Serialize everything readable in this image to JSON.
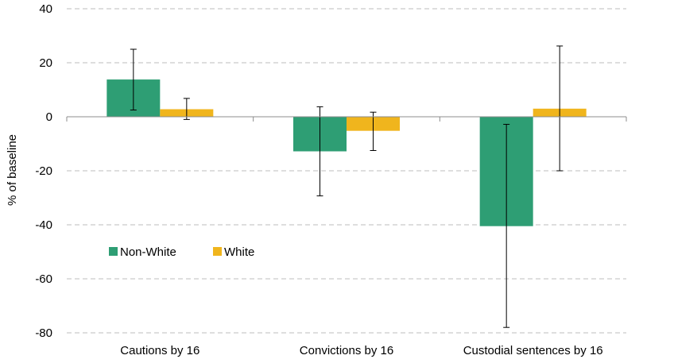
{
  "chart_data": {
    "type": "bar",
    "title": "",
    "xlabel": "",
    "ylabel": "% of baseline",
    "ylim": [
      -80,
      40
    ],
    "yticks": [
      40,
      20,
      0,
      -20,
      -40,
      -60,
      -80
    ],
    "grid": true,
    "legend_position": "center-left",
    "categories": [
      "Cautions by 16",
      "Convictions by 16",
      "Custodial sentences by 16"
    ],
    "series": [
      {
        "name": "Non-White",
        "color": "#2e9e74",
        "values": [
          13.8,
          -12.8,
          -40.5
        ],
        "error_low": [
          2.5,
          -29.3,
          -78.0
        ],
        "error_high": [
          25.0,
          3.7,
          -2.8
        ]
      },
      {
        "name": "White",
        "color": "#f0b51d",
        "values": [
          2.8,
          -5.2,
          3.0
        ],
        "error_low": [
          -1.0,
          -12.5,
          -20.0
        ],
        "error_high": [
          6.8,
          1.7,
          26.2
        ]
      }
    ]
  }
}
